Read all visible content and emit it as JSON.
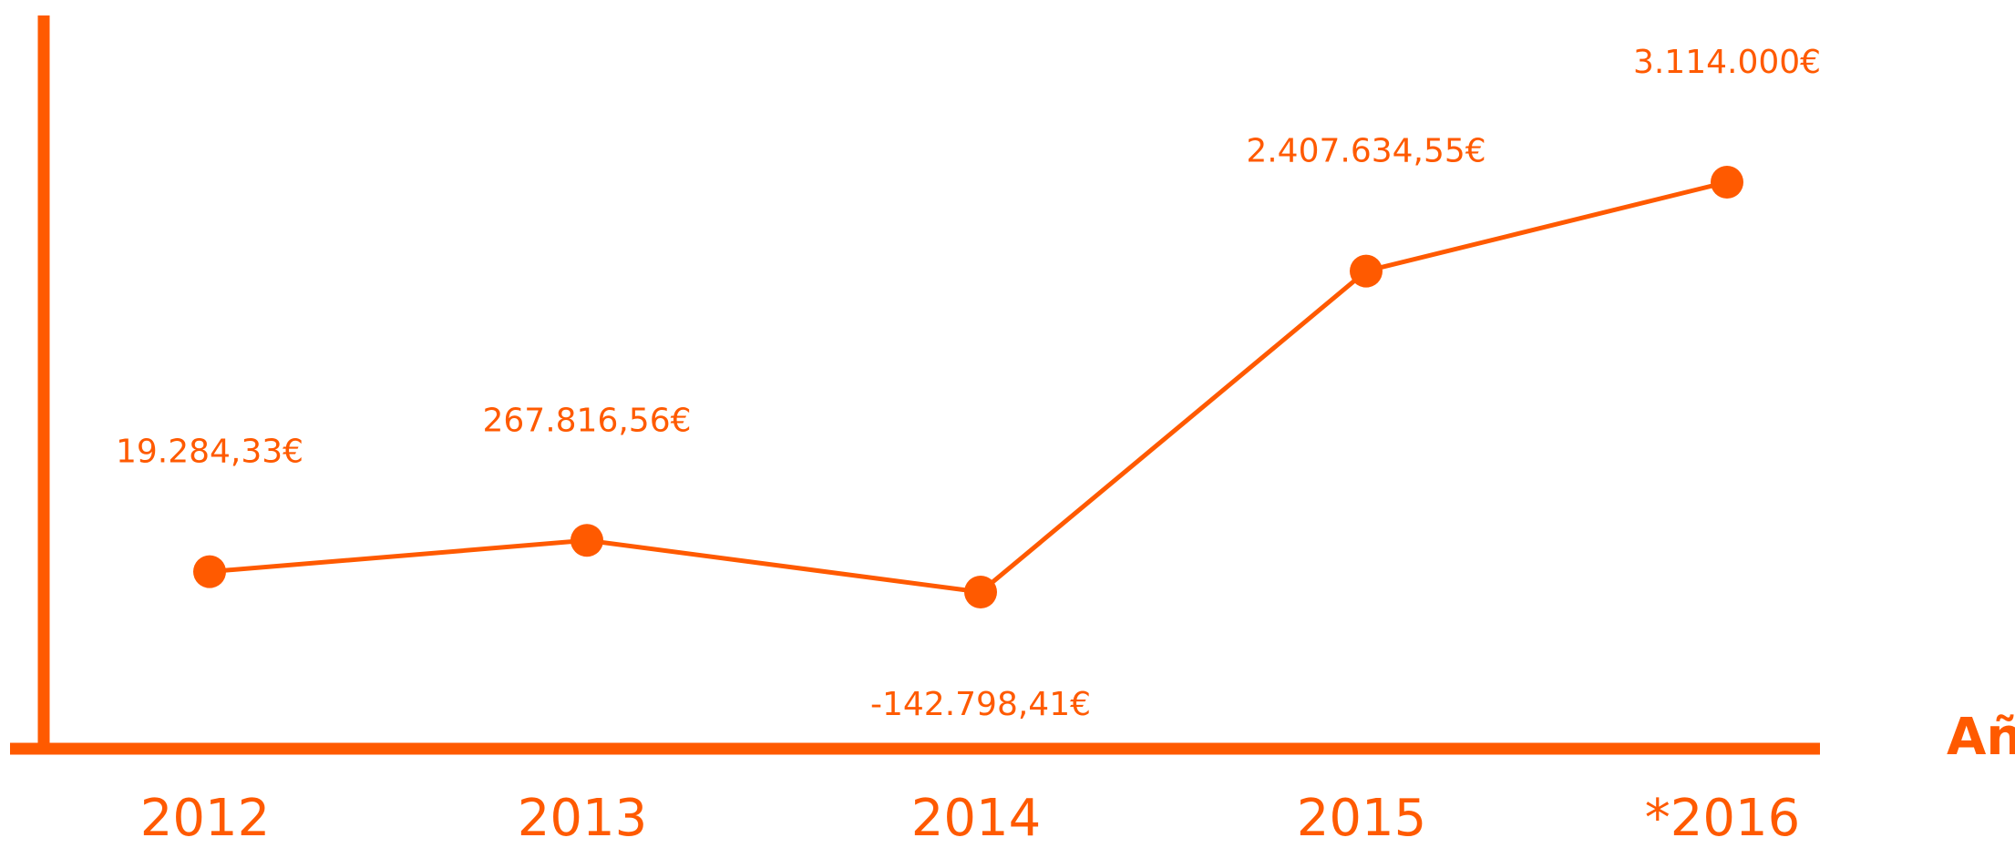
{
  "chart_data": {
    "type": "line",
    "categories": [
      "2012",
      "2013",
      "2014",
      "2015",
      "*2016"
    ],
    "values": [
      19284.33,
      267816.56,
      -142798.41,
      2407634.55,
      3114000
    ],
    "value_labels": [
      "19.284,33€",
      "267.816,56€",
      "-142.798,41€",
      "2.407.634,55€",
      "3.114.000€"
    ],
    "xlabel": "Año",
    "color": "#ff5a00"
  }
}
